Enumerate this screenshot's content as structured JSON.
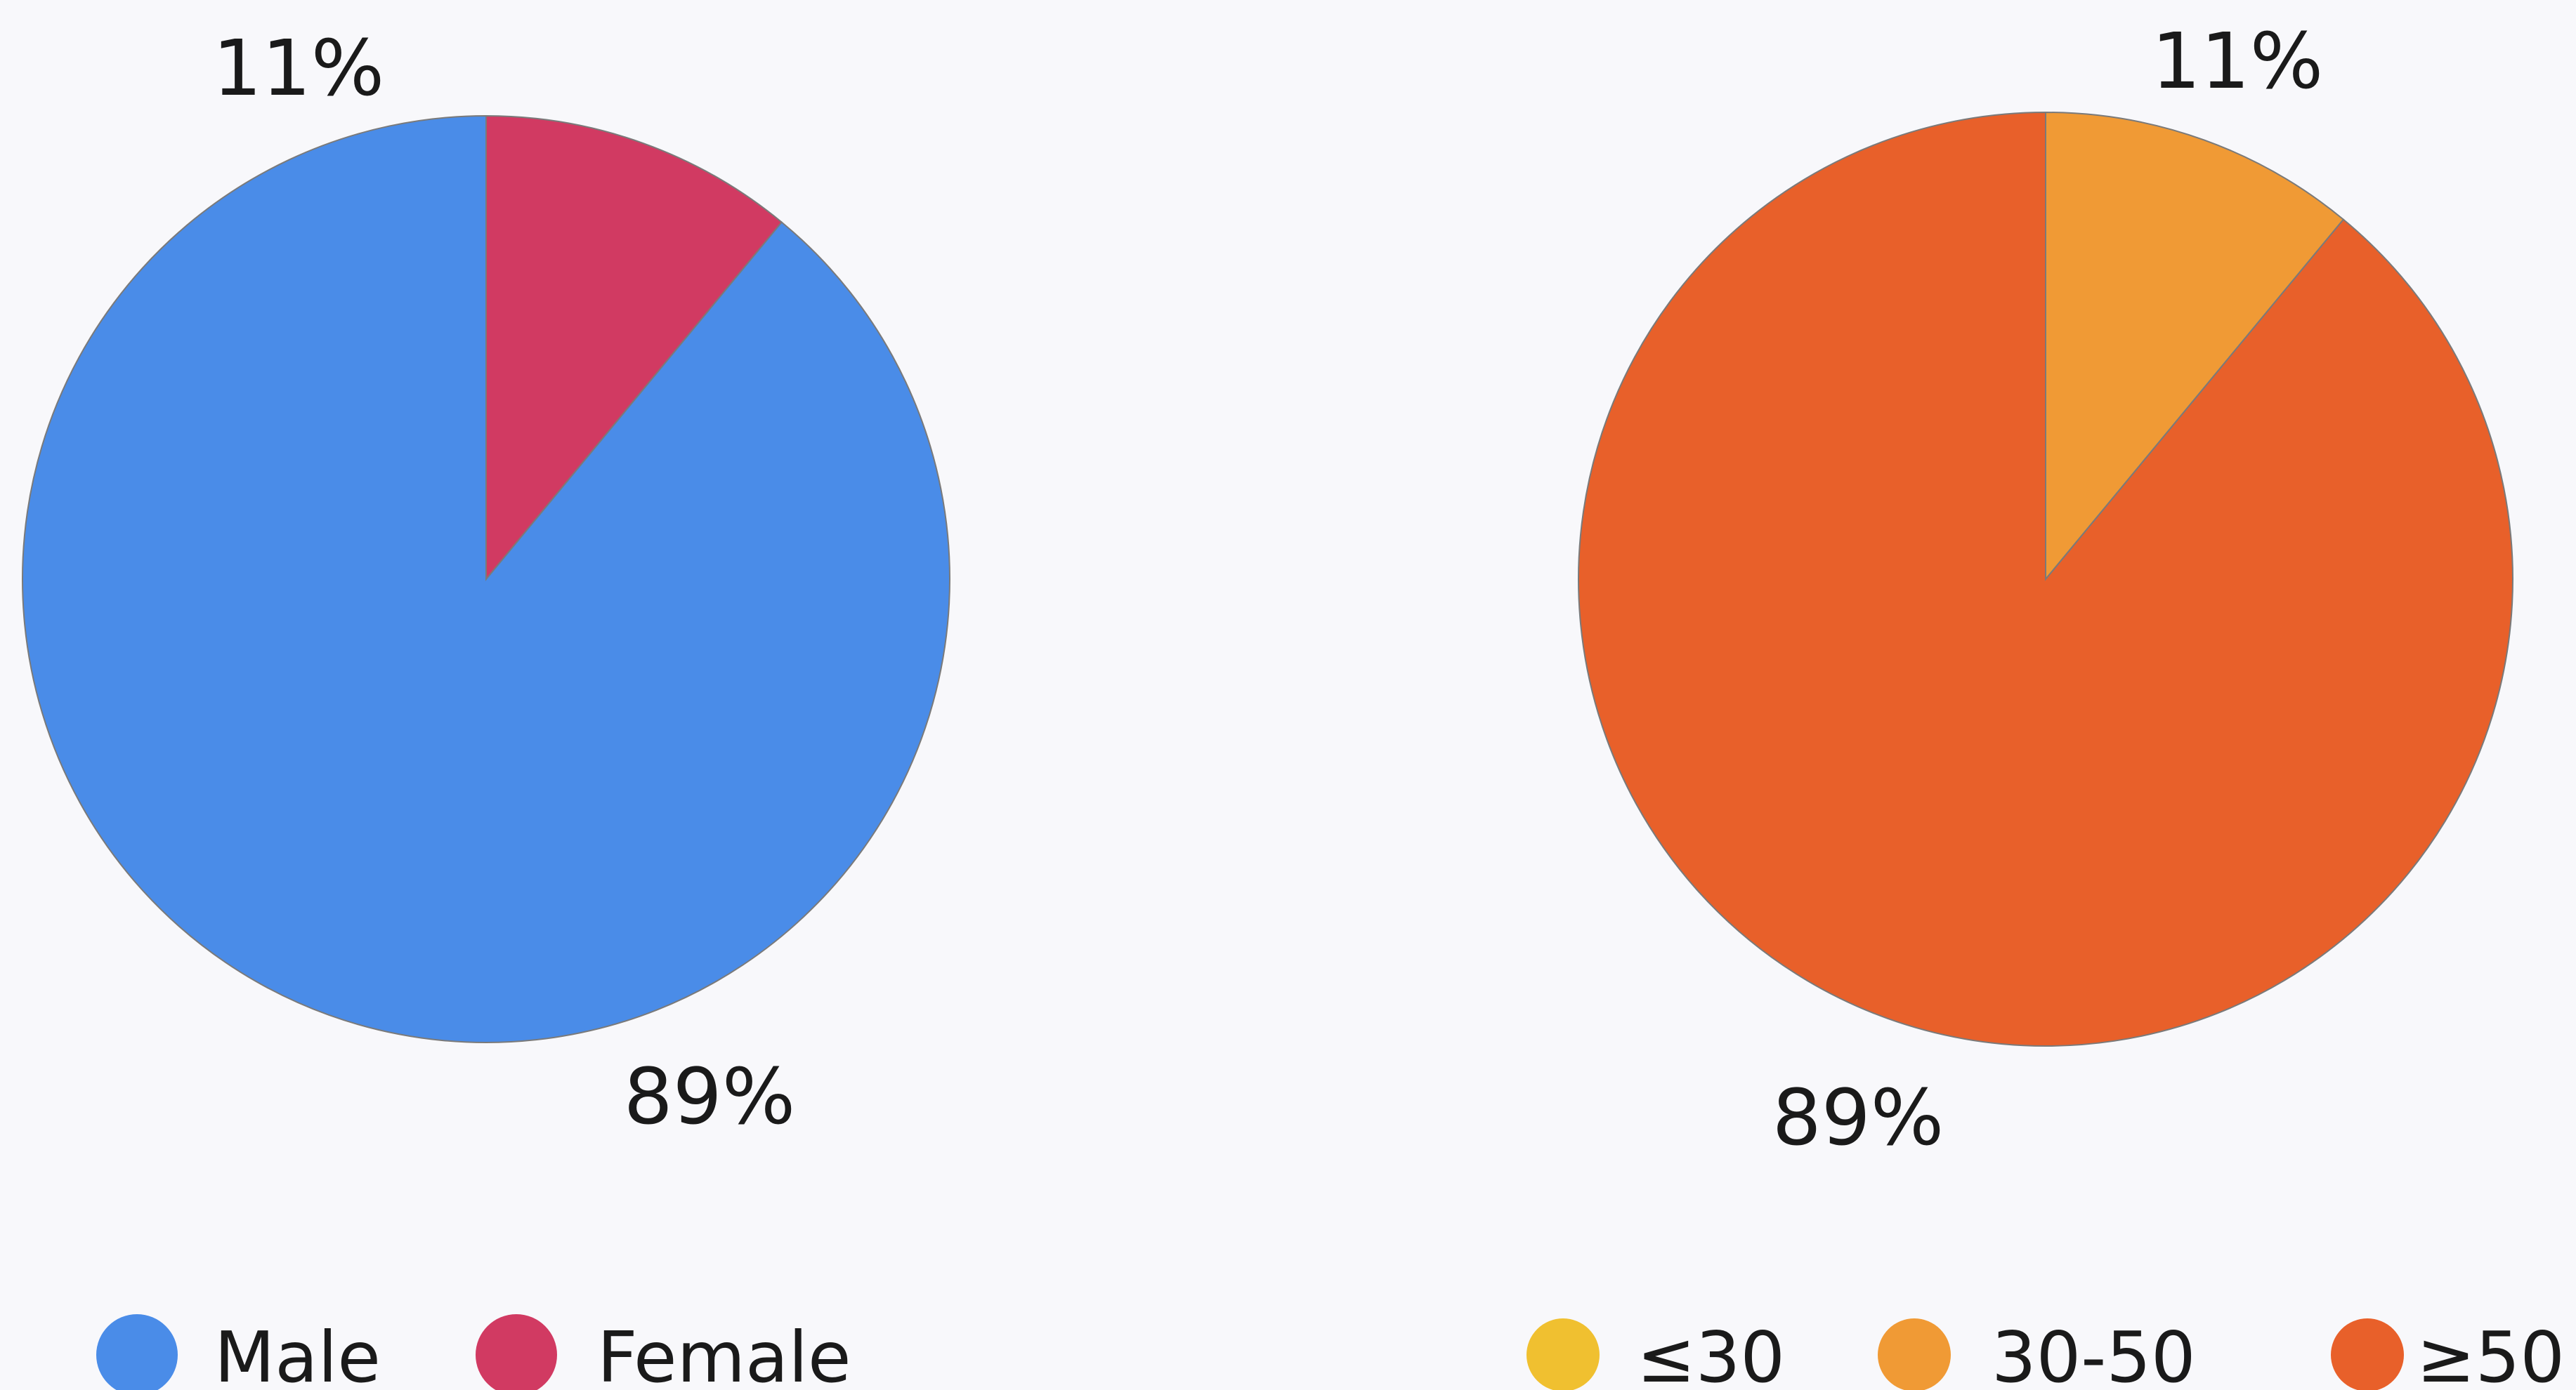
{
  "chart_data": [
    {
      "type": "pie",
      "title": "",
      "categories": [
        "Male",
        "Female"
      ],
      "values": [
        89,
        11
      ],
      "labels": [
        "89%",
        "11%"
      ],
      "colors": [
        "#4a8ce8",
        "#d13a62"
      ],
      "legend": {
        "placement": "bottom",
        "entries": [
          "Male",
          "Female"
        ],
        "colors": [
          "#4a8ce8",
          "#d13a62"
        ]
      }
    },
    {
      "type": "pie",
      "title": "",
      "categories": [
        "≤30",
        "30-50",
        "≥50"
      ],
      "values": [
        0,
        11,
        89
      ],
      "labels": [
        "",
        "11%",
        "89%"
      ],
      "colors": [
        "#f0c030",
        "#f09a35",
        "#e8602a"
      ],
      "legend": {
        "placement": "bottom",
        "entries": [
          "≤30",
          "30-50",
          "≥50"
        ],
        "colors": [
          "#f0c030",
          "#f09a35",
          "#e8602a"
        ]
      }
    }
  ]
}
